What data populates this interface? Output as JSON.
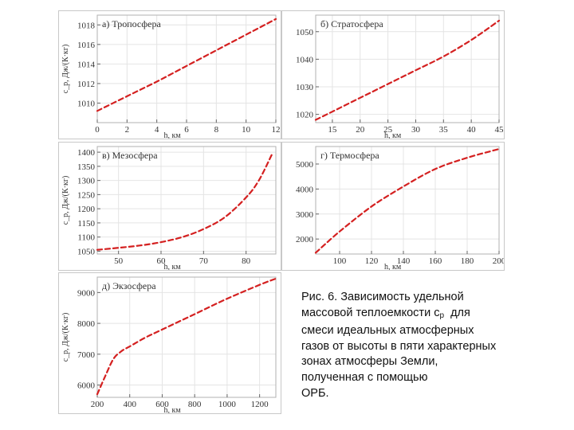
{
  "caption": {
    "line1": "Рис. 6. Зависимость удельной",
    "line2a": "массовой теплоемкости c",
    "line2sub": "p",
    "line2b": "  для",
    "line3": "смеси идеальных атмосферных",
    "line4": "газов от высоты в пяти характерных",
    "line5": "зонах атмосферы Земли,",
    "line6": "полученная с помощью",
    "line7": "ОРБ."
  },
  "colors": {
    "curve": "#d42020",
    "frame": "#b0b0b0",
    "grid": "#e4e4e4",
    "text": "#333333"
  },
  "chart_data": [
    {
      "type": "line",
      "title": "а) Тропосфера",
      "xlabel": "h, км",
      "ylabel": "c_p, Дж/(К·кг)",
      "xlim": [
        0,
        12
      ],
      "ylim": [
        1008,
        1019
      ],
      "xticks": [
        0,
        2,
        4,
        6,
        8,
        10,
        12
      ],
      "yticks": [
        1010,
        1012,
        1014,
        1016,
        1018
      ],
      "grid": true,
      "x": [
        0,
        2,
        4,
        6,
        8,
        10,
        12
      ],
      "y": [
        1009.2,
        1010.7,
        1012.2,
        1013.8,
        1015.4,
        1017.0,
        1018.6
      ]
    },
    {
      "type": "line",
      "title": "б) Стратосфера",
      "xlabel": "h, км",
      "ylabel": "",
      "xlim": [
        12,
        45
      ],
      "ylim": [
        1017,
        1056
      ],
      "xticks": [
        15,
        20,
        25,
        30,
        35,
        40,
        45
      ],
      "yticks": [
        1020,
        1030,
        1040,
        1050
      ],
      "grid": true,
      "x": [
        12,
        15,
        20,
        25,
        30,
        35,
        40,
        45
      ],
      "y": [
        1018,
        1021,
        1026,
        1031,
        1036,
        1041,
        1047,
        1054
      ]
    },
    {
      "type": "line",
      "title": "в) Мезосфера",
      "xlabel": "h, км",
      "ylabel": "c_p, Дж/(К·кг)",
      "xlim": [
        45,
        87
      ],
      "ylim": [
        1040,
        1420
      ],
      "xticks": [
        50,
        60,
        70,
        80
      ],
      "yticks": [
        1050,
        1100,
        1150,
        1200,
        1250,
        1300,
        1350,
        1400
      ],
      "grid": true,
      "x": [
        45,
        50,
        55,
        60,
        65,
        70,
        75,
        80,
        83,
        86
      ],
      "y": [
        1055,
        1062,
        1070,
        1082,
        1100,
        1128,
        1170,
        1240,
        1300,
        1390
      ]
    },
    {
      "type": "line",
      "title": "г) Термосфера",
      "xlabel": "h, км",
      "ylabel": "",
      "xlim": [
        85,
        200
      ],
      "ylim": [
        1400,
        5700
      ],
      "xticks": [
        100,
        120,
        140,
        160,
        180,
        200
      ],
      "yticks": [
        2000,
        3000,
        4000,
        5000
      ],
      "grid": true,
      "x": [
        85,
        100,
        120,
        140,
        160,
        180,
        200
      ],
      "y": [
        1450,
        2300,
        3300,
        4100,
        4800,
        5250,
        5600
      ]
    },
    {
      "type": "line",
      "title": "д) Экзосфера",
      "xlabel": "h, км",
      "ylabel": "c_p, Дж/(К·кг)",
      "xlim": [
        200,
        1300
      ],
      "ylim": [
        5600,
        9500
      ],
      "xticks": [
        200,
        400,
        600,
        800,
        1000,
        1200
      ],
      "yticks": [
        6000,
        7000,
        8000,
        9000
      ],
      "grid": true,
      "x": [
        200,
        250,
        300,
        350,
        400,
        500,
        600,
        800,
        1000,
        1200,
        1300
      ],
      "y": [
        5700,
        6300,
        6850,
        7100,
        7250,
        7550,
        7800,
        8300,
        8800,
        9250,
        9450
      ]
    }
  ]
}
